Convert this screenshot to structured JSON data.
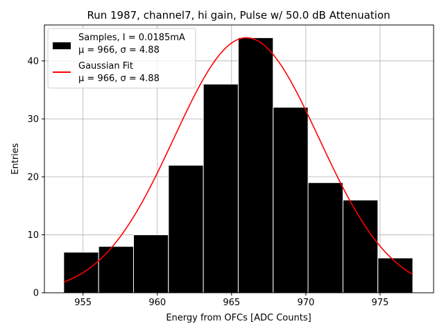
{
  "chart_data": {
    "type": "bar",
    "title": "Run 1987, channel7, hi gain, Pulse w/ 50.0 dB Attenuation",
    "xlabel": "Energy from OFCs [ADC Counts]",
    "ylabel": "Entries",
    "xlim": [
      952.4,
      978.6
    ],
    "ylim": [
      0,
      46.2
    ],
    "grid": true,
    "bins": [
      {
        "left": 953.7,
        "right": 956.05,
        "count": 7
      },
      {
        "left": 956.05,
        "right": 958.4,
        "count": 8
      },
      {
        "left": 958.4,
        "right": 960.75,
        "count": 10
      },
      {
        "left": 960.75,
        "right": 963.1,
        "count": 22
      },
      {
        "left": 963.1,
        "right": 965.45,
        "count": 36
      },
      {
        "left": 965.45,
        "right": 967.8,
        "count": 44
      },
      {
        "left": 967.8,
        "right": 970.15,
        "count": 32
      },
      {
        "left": 970.15,
        "right": 972.5,
        "count": 19
      },
      {
        "left": 972.5,
        "right": 974.85,
        "count": 16
      },
      {
        "left": 974.85,
        "right": 977.2,
        "count": 6
      }
    ],
    "fit": {
      "type": "gaussian",
      "amplitude": 44.0,
      "mu": 966.0,
      "sigma": 4.88,
      "x_range": [
        953.7,
        977.2
      ],
      "color": "#ff0000"
    },
    "bar_color": "#000000",
    "x_ticks": [
      {
        "value": 955,
        "label": "955"
      },
      {
        "value": 960,
        "label": "960"
      },
      {
        "value": 965,
        "label": "965"
      },
      {
        "value": 970,
        "label": "970"
      },
      {
        "value": 975,
        "label": "975"
      }
    ],
    "y_ticks": [
      {
        "value": 0,
        "label": "0"
      },
      {
        "value": 10,
        "label": "10"
      },
      {
        "value": 20,
        "label": "20"
      },
      {
        "value": 30,
        "label": "30"
      },
      {
        "value": 40,
        "label": "40"
      }
    ],
    "legend": {
      "position": "top-left",
      "entries": [
        {
          "kind": "bar",
          "line1": "Samples, I = 0.0185mA",
          "line2": "μ = 966, σ = 4.88"
        },
        {
          "kind": "line",
          "line1": "Gaussian Fit",
          "line2": "μ = 966, σ = 4.88"
        }
      ]
    }
  }
}
